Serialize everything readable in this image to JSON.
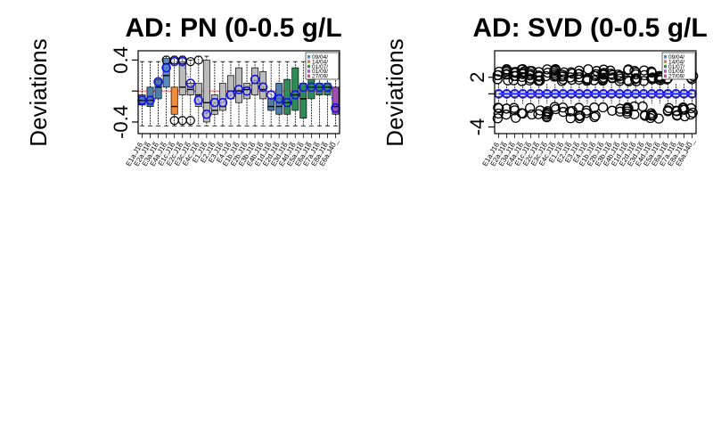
{
  "chart_data": [
    {
      "type": "box",
      "title": "AD: PN (0-0.5 g/L",
      "ylabel": "Deviations",
      "xlabel": "",
      "ylim": [
        -0.55,
        0.52
      ],
      "yticks": [
        "-0.4",
        "0.4"
      ],
      "ytick_values": [
        -0.4,
        0.4
      ],
      "reference_line": 0,
      "categories": [
        "E1a.J16_",
        "E2a.J16_",
        "E3a.J16_",
        "E4a.J16_",
        "E1c.J16_",
        "E2c.J16_",
        "E3c.J16_",
        "E4c.J16_",
        "E1.J16_",
        "E2.J16_",
        "E3.J16_",
        "E4.J16_",
        "E1b.J16_",
        "E2b.J16_",
        "E3b.J16_",
        "E4b.J16_",
        "E1d.J16_",
        "E2d.J16_",
        "E3d.J16_",
        "E4d.J16_",
        "E5a.J16_",
        "E6a.J16_",
        "E7a.J16_",
        "E8a.J16_",
        "E6a.J40_"
      ],
      "legend": [
        "09/04/",
        "14/04/",
        "01/07/",
        "01/09/",
        "27/09/"
      ],
      "legend_colors": [
        "#4a86c8",
        "#e07b39",
        "#2e8b57",
        "#b45ad0",
        "#d94a8a"
      ],
      "series_colors": [
        "#4f7fa8",
        "#4f7fa8",
        "#4f7fa8",
        "#5a8cc0",
        "#f08c3c",
        "#bbbbbb",
        "#bbbbbb",
        "#bbbbbb",
        "#bbbbbb",
        "#bbbbbb",
        "#bbbbbb",
        "#bbbbbb",
        "#bbbbbb",
        "#bbbbbb",
        "#bbbbbb",
        "#bbbbbb",
        "#4f7fa8",
        "#4f7fa8",
        "#2e8b57",
        "#2e8b57",
        "#2e8b57",
        "#2e8b57",
        "#2e8b57",
        "#2e8b57",
        "#a050b0"
      ],
      "boxes": [
        {
          "q1": -0.18,
          "median": -0.12,
          "q3": -0.05,
          "lo": -0.45,
          "hi": 0.38
        },
        {
          "q1": -0.2,
          "median": -0.12,
          "q3": 0.05,
          "lo": -0.45,
          "hi": 0.38
        },
        {
          "q1": -0.1,
          "median": 0.05,
          "q3": 0.15,
          "lo": -0.45,
          "hi": 0.38
        },
        {
          "q1": 0.05,
          "median": 0.2,
          "q3": 0.42,
          "lo": -0.45,
          "hi": 0.45
        },
        {
          "q1": -0.3,
          "median": -0.2,
          "q3": 0.05,
          "lo": -0.45,
          "hi": 0.45
        },
        {
          "q1": -0.05,
          "median": 0.05,
          "q3": 0.38,
          "lo": -0.45,
          "hi": 0.45
        },
        {
          "q1": -0.05,
          "median": 0.02,
          "q3": 0.1,
          "lo": -0.45,
          "hi": 0.4
        },
        {
          "q1": -0.2,
          "median": -0.05,
          "q3": 0.1,
          "lo": -0.45,
          "hi": 0.45
        },
        {
          "q1": -0.4,
          "median": -0.15,
          "q3": 0.4,
          "lo": -0.45,
          "hi": 0.45
        },
        {
          "q1": -0.3,
          "median": -0.25,
          "q3": -0.05,
          "lo": -0.45,
          "hi": 0.38
        },
        {
          "q1": -0.25,
          "median": -0.2,
          "q3": 0.1,
          "lo": -0.45,
          "hi": 0.38
        },
        {
          "q1": -0.1,
          "median": 0.0,
          "q3": 0.2,
          "lo": -0.45,
          "hi": 0.38
        },
        {
          "q1": -0.15,
          "median": 0.0,
          "q3": 0.3,
          "lo": -0.45,
          "hi": 0.38
        },
        {
          "q1": -0.1,
          "median": 0.02,
          "q3": 0.1,
          "lo": -0.45,
          "hi": 0.38
        },
        {
          "q1": -0.05,
          "median": 0.1,
          "q3": 0.3,
          "lo": -0.45,
          "hi": 0.38
        },
        {
          "q1": -0.1,
          "median": 0.02,
          "q3": 0.25,
          "lo": -0.45,
          "hi": 0.38
        },
        {
          "q1": -0.25,
          "median": -0.2,
          "q3": -0.1,
          "lo": -0.45,
          "hi": 0.38
        },
        {
          "q1": -0.3,
          "median": -0.2,
          "q3": 0.1,
          "lo": -0.45,
          "hi": 0.38
        },
        {
          "q1": -0.3,
          "median": -0.15,
          "q3": 0.15,
          "lo": -0.45,
          "hi": 0.38
        },
        {
          "q1": -0.25,
          "median": -0.05,
          "q3": 0.3,
          "lo": -0.45,
          "hi": 0.38
        },
        {
          "q1": -0.35,
          "median": -0.1,
          "q3": 0.1,
          "lo": -0.45,
          "hi": 0.38
        },
        {
          "q1": -0.1,
          "median": 0.05,
          "q3": 0.2,
          "lo": -0.45,
          "hi": 0.38
        },
        {
          "q1": -0.05,
          "median": 0.05,
          "q3": 0.1,
          "lo": -0.45,
          "hi": 0.38
        },
        {
          "q1": -0.05,
          "median": 0.05,
          "q3": 0.1,
          "lo": -0.45,
          "hi": 0.38
        },
        {
          "q1": -0.3,
          "median": -0.2,
          "q3": 0.05,
          "lo": -0.45,
          "hi": 0.38
        }
      ],
      "means": [
        -0.12,
        -0.12,
        0.12,
        0.3,
        0.38,
        0.38,
        0.1,
        -0.12,
        -0.3,
        -0.15,
        -0.15,
        -0.05,
        0.02,
        0.0,
        0.15,
        0.05,
        -0.05,
        -0.1,
        -0.15,
        -0.05,
        0.05,
        0.05,
        0.05,
        0.05,
        -0.22
      ],
      "outliers": [
        {
          "i": 3,
          "y": 0.4
        },
        {
          "i": 4,
          "y": 0.4
        },
        {
          "i": 5,
          "y": 0.4
        },
        {
          "i": 6,
          "y": 0.38
        },
        {
          "i": 7,
          "y": 0.4
        },
        {
          "i": 4,
          "y": -0.38
        },
        {
          "i": 5,
          "y": -0.38
        },
        {
          "i": 6,
          "y": -0.38
        }
      ]
    },
    {
      "type": "box",
      "title": "AD: SVD (0-0.5 g/L",
      "ylabel": "Deviations",
      "xlabel": "",
      "ylim": [
        -4.8,
        5.2
      ],
      "yticks": [
        "-4",
        "2"
      ],
      "ytick_values": [
        -4,
        2
      ],
      "reference_line": 0,
      "categories": [
        "E1a.J16_",
        "E2a.J16_",
        "E3a.J16_",
        "E4a.J16_",
        "E1c.J16_",
        "E2c.J16_",
        "E3c.J16_",
        "E4c.J16_",
        "E1.J16_",
        "E2.J16_",
        "E3.J16_",
        "E4.J16_",
        "E1b.J16_",
        "E2b.J16_",
        "E3b.J16_",
        "E4b.J16_",
        "E1d.J16_",
        "E2d.J16_",
        "E3d.J16_",
        "E4d.J16_",
        "E5a.J16_",
        "E6a.J16_",
        "E7a.J16_",
        "E8a.J16_",
        "E6a.J40_"
      ],
      "legend": [
        "09/04/",
        "14/04/",
        "01/07/",
        "01/09/",
        "27/09/"
      ],
      "legend_colors": [
        "#4a86c8",
        "#e07b39",
        "#2e8b57",
        "#b45ad0",
        "#d94a8a"
      ],
      "spread": [
        1.5,
        2.2,
        3.0
      ]
    }
  ]
}
